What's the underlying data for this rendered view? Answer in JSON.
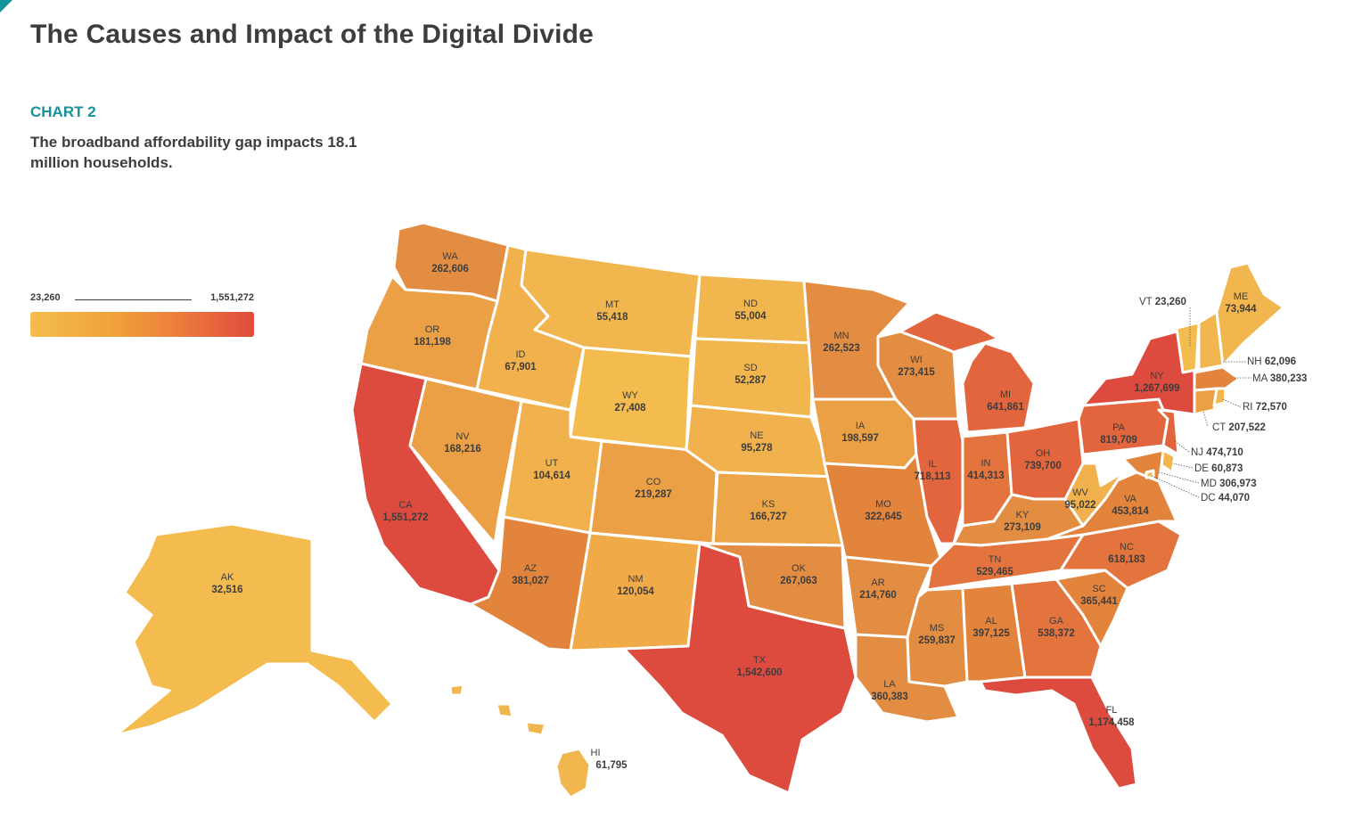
{
  "header": {
    "title": "The Causes and Impact of the Digital Divide",
    "chart_label": "CHART 2",
    "subtitle": "The broadband affordability gap impacts 18.1 million households."
  },
  "legend": {
    "min": "23,260",
    "max": "1,551,272"
  },
  "colors": {
    "accent": "#14939a",
    "low": "#f4bc4e",
    "mid": "#ec8a3c",
    "high": "#e14a3d"
  },
  "states": [
    {
      "code": "WA",
      "value": "262,606"
    },
    {
      "code": "OR",
      "value": "181,198"
    },
    {
      "code": "CA",
      "value": "1,551,272"
    },
    {
      "code": "NV",
      "value": "168,216"
    },
    {
      "code": "ID",
      "value": "67,901"
    },
    {
      "code": "MT",
      "value": "55,418"
    },
    {
      "code": "WY",
      "value": "27,408"
    },
    {
      "code": "UT",
      "value": "104,614"
    },
    {
      "code": "AZ",
      "value": "381,027"
    },
    {
      "code": "CO",
      "value": "219,287"
    },
    {
      "code": "NM",
      "value": "120,054"
    },
    {
      "code": "ND",
      "value": "55,004"
    },
    {
      "code": "SD",
      "value": "52,287"
    },
    {
      "code": "NE",
      "value": "95,278"
    },
    {
      "code": "KS",
      "value": "166,727"
    },
    {
      "code": "OK",
      "value": "267,063"
    },
    {
      "code": "TX",
      "value": "1,542,600"
    },
    {
      "code": "MN",
      "value": "262,523"
    },
    {
      "code": "IA",
      "value": "198,597"
    },
    {
      "code": "MO",
      "value": "322,645"
    },
    {
      "code": "AR",
      "value": "214,760"
    },
    {
      "code": "LA",
      "value": "360,383"
    },
    {
      "code": "WI",
      "value": "273,415"
    },
    {
      "code": "IL",
      "value": "718,113"
    },
    {
      "code": "MI",
      "value": "641,861"
    },
    {
      "code": "IN",
      "value": "414,313"
    },
    {
      "code": "OH",
      "value": "739,700"
    },
    {
      "code": "KY",
      "value": "273,109"
    },
    {
      "code": "TN",
      "value": "529,465"
    },
    {
      "code": "MS",
      "value": "259,837"
    },
    {
      "code": "AL",
      "value": "397,125"
    },
    {
      "code": "GA",
      "value": "538,372"
    },
    {
      "code": "FL",
      "value": "1,174,458"
    },
    {
      "code": "SC",
      "value": "365,441"
    },
    {
      "code": "NC",
      "value": "618,183"
    },
    {
      "code": "VA",
      "value": "453,814"
    },
    {
      "code": "WV",
      "value": "95,022"
    },
    {
      "code": "PA",
      "value": "819,709"
    },
    {
      "code": "NY",
      "value": "1,267,699"
    },
    {
      "code": "ME",
      "value": "73,944"
    },
    {
      "code": "AK",
      "value": "32,516"
    },
    {
      "code": "HI",
      "value": "61,795"
    }
  ],
  "callouts": [
    {
      "code": "VT",
      "value": "23,260"
    },
    {
      "code": "NH",
      "value": "62,096"
    },
    {
      "code": "MA",
      "value": "380,233"
    },
    {
      "code": "RI",
      "value": "72,570"
    },
    {
      "code": "CT",
      "value": "207,522"
    },
    {
      "code": "NJ",
      "value": "474,710"
    },
    {
      "code": "DE",
      "value": "60,873"
    },
    {
      "code": "MD",
      "value": "306,973"
    },
    {
      "code": "DC",
      "value": "44,070"
    }
  ]
}
